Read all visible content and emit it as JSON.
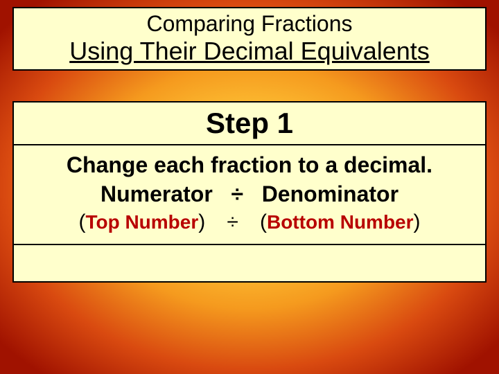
{
  "slide": {
    "background": {
      "type": "radial-gradient",
      "center_color": "#ffe070",
      "mid1_color": "#ffc838",
      "mid2_color": "#f59a1e",
      "mid3_color": "#d94a10",
      "edge_color": "#a01200"
    },
    "box_fill": "#ffffcc",
    "box_border": "#000000",
    "highlight_color": "#b80000"
  },
  "title": {
    "line1": "Comparing Fractions",
    "line2": "Using Their Decimal Equivalents",
    "line1_fontsize": 32,
    "line2_fontsize": 36,
    "line2_underline": true
  },
  "step": {
    "header": "Step 1",
    "header_fontsize": 42,
    "header_fontfamily": "Arial Black",
    "body": {
      "line1": "Change each fraction to a decimal.",
      "line2": {
        "left": "Numerator",
        "op": "÷",
        "right": "Denominator"
      },
      "line3": {
        "open1": "(",
        "top_word": "Top Number",
        "close1": ")",
        "op": "÷",
        "open2": "(",
        "bottom_word": "Bottom Number",
        "close2": ")"
      },
      "fontsize_main": 32,
      "fontsize_sub": 28
    }
  }
}
